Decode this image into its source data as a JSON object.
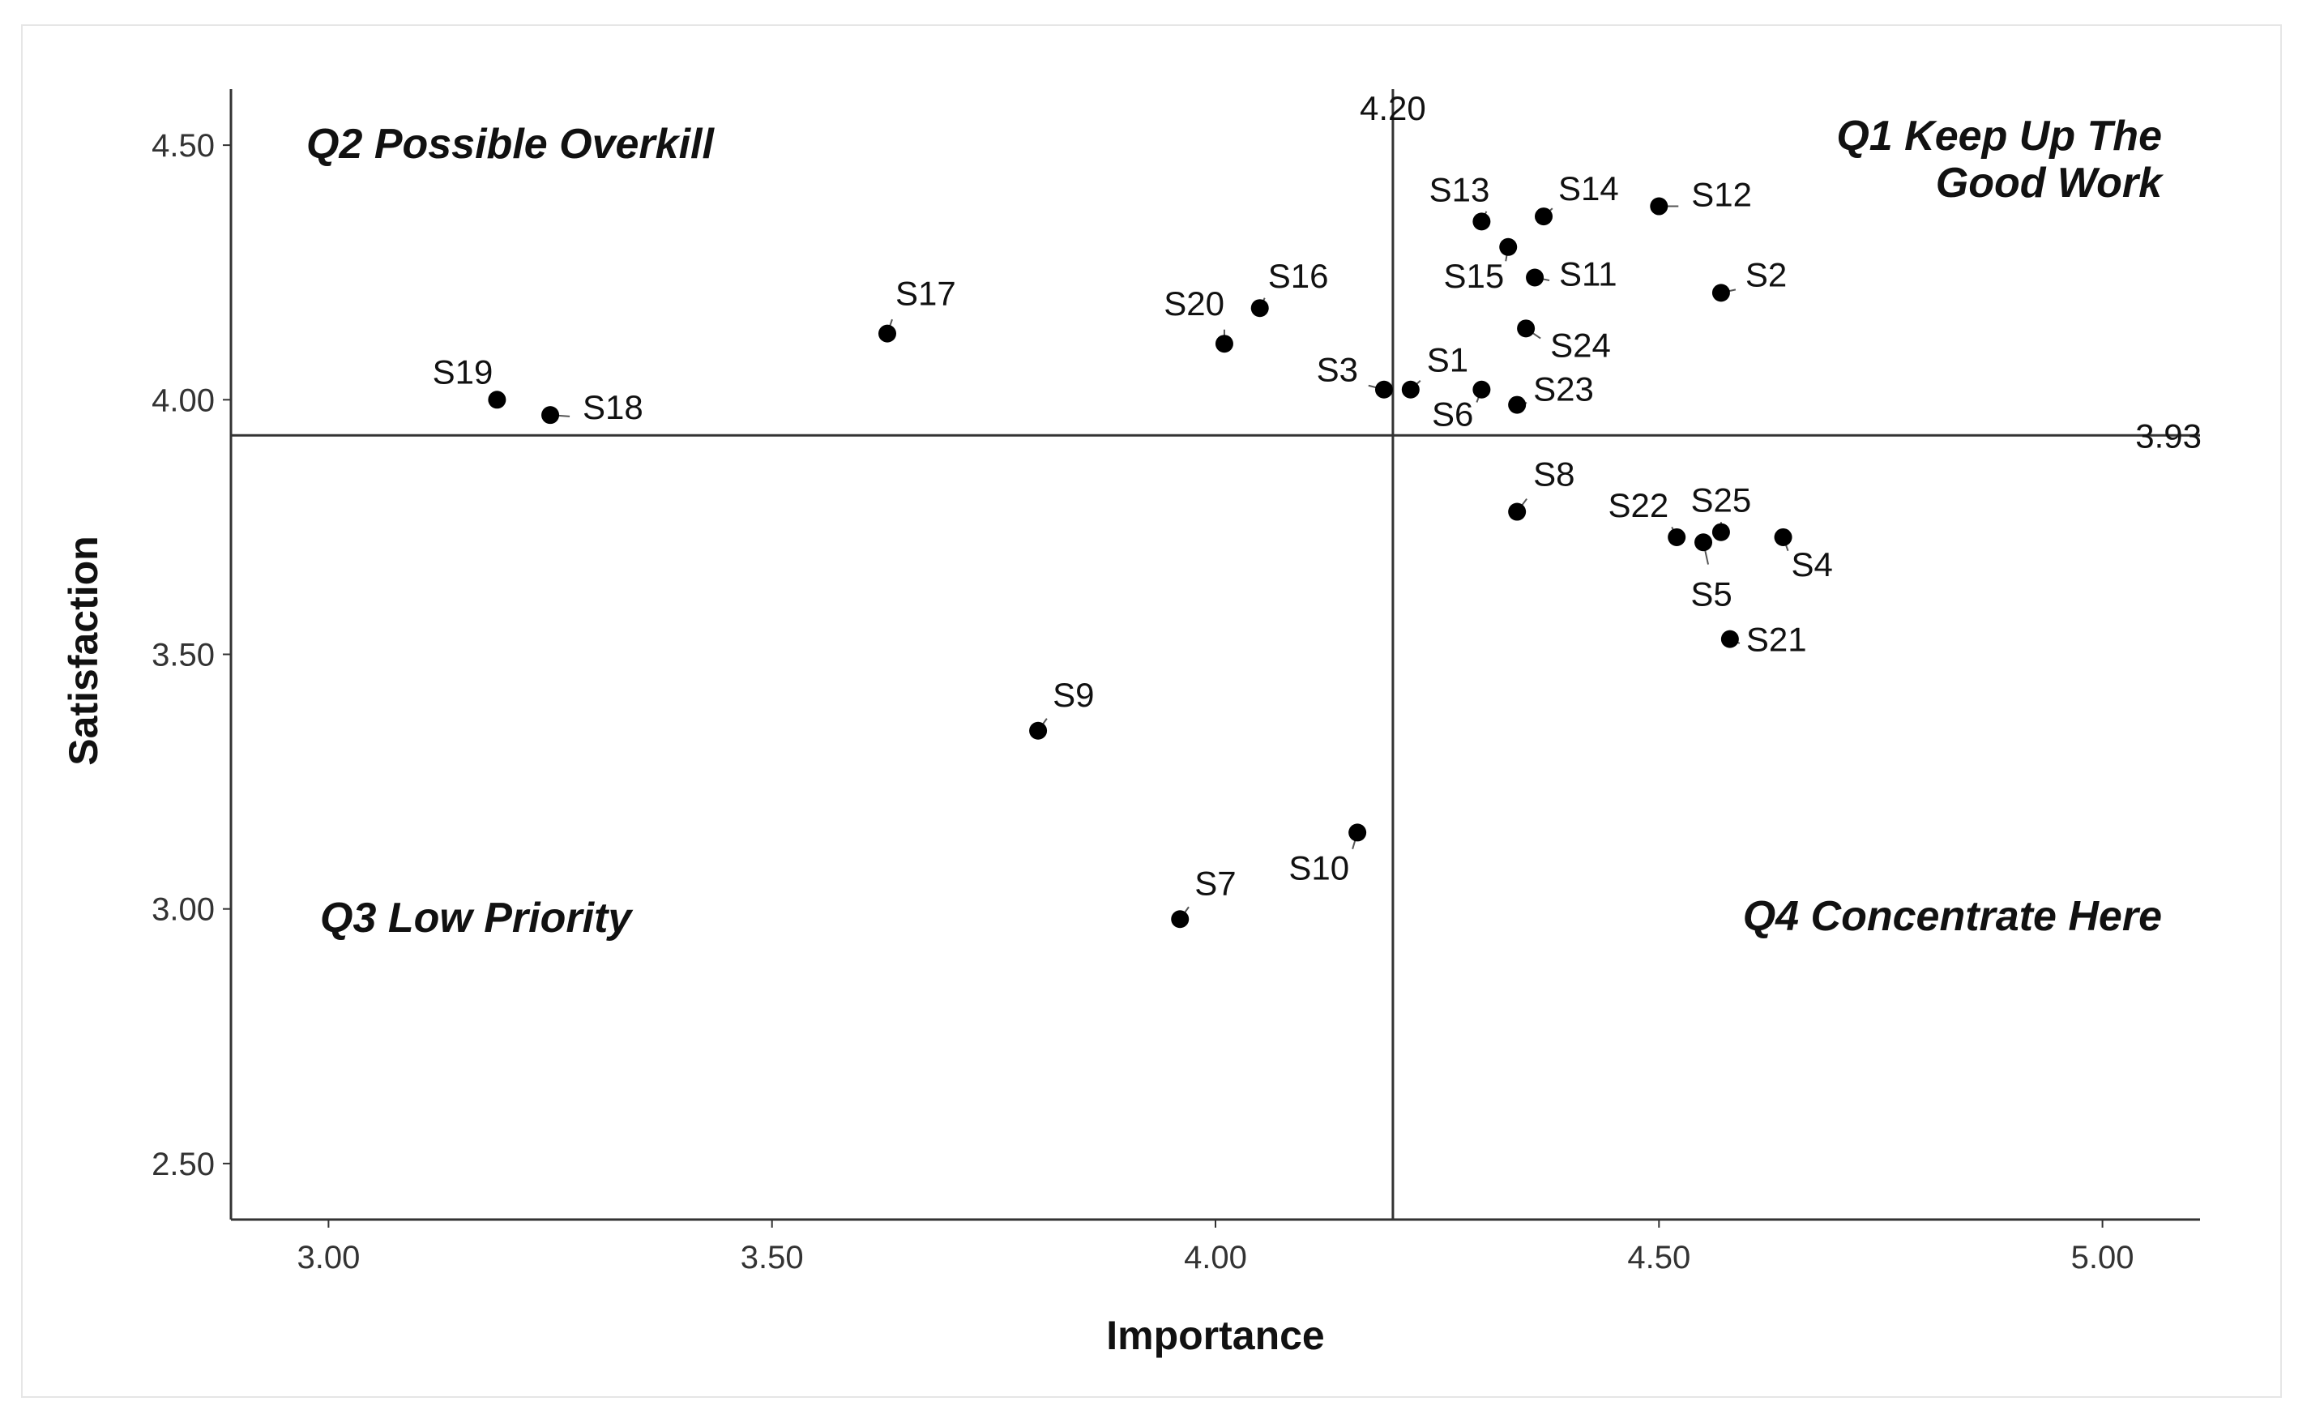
{
  "chart_data": {
    "type": "scatter",
    "xlabel": "Importance",
    "ylabel": "Satisfaction",
    "xlim": [
      2.89,
      5.11
    ],
    "ylim": [
      2.39,
      4.61
    ],
    "xticks": [
      "3.00",
      "3.50",
      "4.00",
      "4.50",
      "5.00"
    ],
    "yticks": [
      "2.50",
      "3.00",
      "3.50",
      "4.00",
      "4.50"
    ],
    "x_reference": {
      "value": 4.2,
      "label": "4.20"
    },
    "y_reference": {
      "value": 3.93,
      "label": "3.93"
    },
    "quadrants": [
      {
        "id": "Q1",
        "lines": [
          "Q1  Keep Up The",
          "Good Work"
        ]
      },
      {
        "id": "Q2",
        "lines": [
          "Q2  Possible  Overkill"
        ]
      },
      {
        "id": "Q3",
        "lines": [
          "Q3  Low Priority"
        ]
      },
      {
        "id": "Q4",
        "lines": [
          "Q4  Concentrate Here"
        ]
      }
    ],
    "points": [
      {
        "label": "S1",
        "x": 4.22,
        "y": 4.02
      },
      {
        "label": "S2",
        "x": 4.57,
        "y": 4.21
      },
      {
        "label": "S3",
        "x": 4.19,
        "y": 4.02
      },
      {
        "label": "S4",
        "x": 4.64,
        "y": 3.73
      },
      {
        "label": "S5",
        "x": 4.55,
        "y": 3.72
      },
      {
        "label": "S6",
        "x": 4.3,
        "y": 4.02
      },
      {
        "label": "S7",
        "x": 3.96,
        "y": 2.98
      },
      {
        "label": "S8",
        "x": 4.34,
        "y": 3.78
      },
      {
        "label": "S9",
        "x": 3.8,
        "y": 3.35
      },
      {
        "label": "S10",
        "x": 4.16,
        "y": 3.15
      },
      {
        "label": "S11",
        "x": 4.36,
        "y": 4.24
      },
      {
        "label": "S12",
        "x": 4.5,
        "y": 4.38
      },
      {
        "label": "S13",
        "x": 4.3,
        "y": 4.35
      },
      {
        "label": "S14",
        "x": 4.37,
        "y": 4.36
      },
      {
        "label": "S15",
        "x": 4.33,
        "y": 4.3
      },
      {
        "label": "S16",
        "x": 4.05,
        "y": 4.18
      },
      {
        "label": "S17",
        "x": 3.63,
        "y": 4.13
      },
      {
        "label": "S18",
        "x": 3.25,
        "y": 3.97
      },
      {
        "label": "S19",
        "x": 3.19,
        "y": 4.0
      },
      {
        "label": "S20",
        "x": 4.01,
        "y": 4.11
      },
      {
        "label": "S21",
        "x": 4.58,
        "y": 3.53
      },
      {
        "label": "S22",
        "x": 4.52,
        "y": 3.73
      },
      {
        "label": "S23",
        "x": 4.34,
        "y": 3.99
      },
      {
        "label": "S24",
        "x": 4.35,
        "y": 4.14
      },
      {
        "label": "S25",
        "x": 4.57,
        "y": 3.74
      }
    ]
  }
}
